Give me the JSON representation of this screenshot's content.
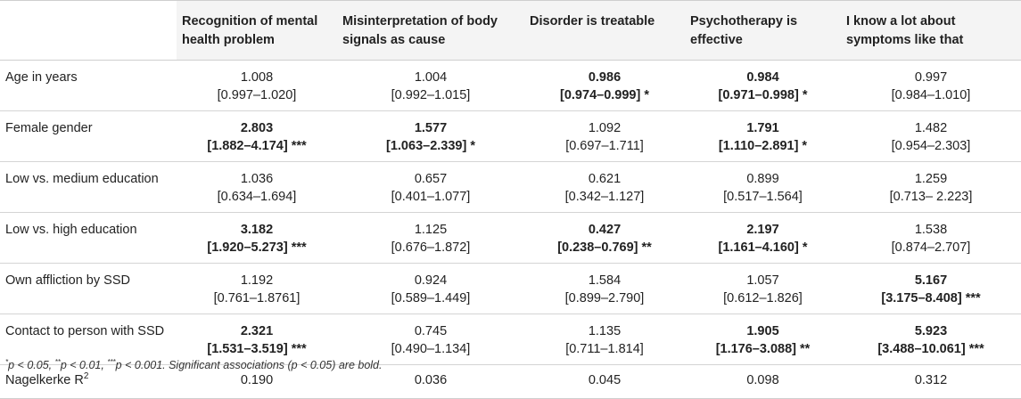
{
  "table": {
    "headers": [
      "",
      "Recognition of mental health problem",
      "Misinterpretation of body signals as cause",
      "Disorder is treatable",
      "Psychotherapy is effective",
      "I know a lot about symptoms like that"
    ],
    "rows": [
      {
        "label": "Age in years",
        "cells": [
          {
            "value": "1.008",
            "ci": "[0.997–1.020]",
            "bold": false
          },
          {
            "value": "1.004",
            "ci": "[0.992–1.015]",
            "bold": false
          },
          {
            "value": "0.986",
            "ci": "[0.974–0.999] *",
            "bold": true
          },
          {
            "value": "0.984",
            "ci": "[0.971–0.998] *",
            "bold": true
          },
          {
            "value": "0.997",
            "ci": "[0.984–1.010]",
            "bold": false
          }
        ]
      },
      {
        "label": "Female gender",
        "cells": [
          {
            "value": "2.803",
            "ci": "[1.882–4.174] ***",
            "bold": true
          },
          {
            "value": "1.577",
            "ci": "[1.063–2.339] *",
            "bold": true
          },
          {
            "value": "1.092",
            "ci": "[0.697–1.711]",
            "bold": false
          },
          {
            "value": "1.791",
            "ci": "[1.110–2.891] *",
            "bold": true
          },
          {
            "value": "1.482",
            "ci": "[0.954–2.303]",
            "bold": false
          }
        ]
      },
      {
        "label": "Low vs. medium education",
        "cells": [
          {
            "value": "1.036",
            "ci": "[0.634–1.694]",
            "bold": false
          },
          {
            "value": "0.657",
            "ci": "[0.401–1.077]",
            "bold": false
          },
          {
            "value": "0.621",
            "ci": "[0.342–1.127]",
            "bold": false
          },
          {
            "value": "0.899",
            "ci": "[0.517–1.564]",
            "bold": false
          },
          {
            "value": "1.259",
            "ci": "[0.713– 2.223]",
            "bold": false
          }
        ]
      },
      {
        "label": "Low vs. high education",
        "cells": [
          {
            "value": "3.182",
            "ci": "[1.920–5.273] ***",
            "bold": true
          },
          {
            "value": "1.125",
            "ci": "[0.676–1.872]",
            "bold": false
          },
          {
            "value": "0.427",
            "ci": "[0.238–0.769] **",
            "bold": true
          },
          {
            "value": "2.197",
            "ci": "[1.161–4.160] *",
            "bold": true
          },
          {
            "value": "1.538",
            "ci": "[0.874–2.707]",
            "bold": false
          }
        ]
      },
      {
        "label": "Own affliction by SSD",
        "cells": [
          {
            "value": "1.192",
            "ci": "[0.761–1.8761]",
            "bold": false
          },
          {
            "value": "0.924",
            "ci": "[0.589–1.449]",
            "bold": false
          },
          {
            "value": "1.584",
            "ci": "[0.899–2.790]",
            "bold": false
          },
          {
            "value": "1.057",
            "ci": "[0.612–1.826]",
            "bold": false
          },
          {
            "value": "5.167",
            "ci": "[3.175–8.408] ***",
            "bold": true
          }
        ]
      },
      {
        "label": "Contact to person with SSD",
        "cells": [
          {
            "value": "2.321",
            "ci": "[1.531–3.519] ***",
            "bold": true
          },
          {
            "value": "0.745",
            "ci": "[0.490–1.134]",
            "bold": false
          },
          {
            "value": "1.135",
            "ci": "[0.711–1.814]",
            "bold": false
          },
          {
            "value": "1.905",
            "ci": "[1.176–3.088] **",
            "bold": true
          },
          {
            "value": "5.923",
            "ci": "[3.488–10.061] ***",
            "bold": true
          }
        ]
      }
    ],
    "r2": {
      "label": "Nagelkerke R",
      "label_sup": "2",
      "values": [
        "0.190",
        "0.036",
        "0.045",
        "0.098",
        "0.312"
      ]
    }
  },
  "footnote": {
    "star1": "*",
    "part1": "p < 0.05, ",
    "star2": "**",
    "part2": "p < 0.01, ",
    "star3": "***",
    "part3": "p < 0.001. Significant associations (p < 0.05) are bold."
  }
}
